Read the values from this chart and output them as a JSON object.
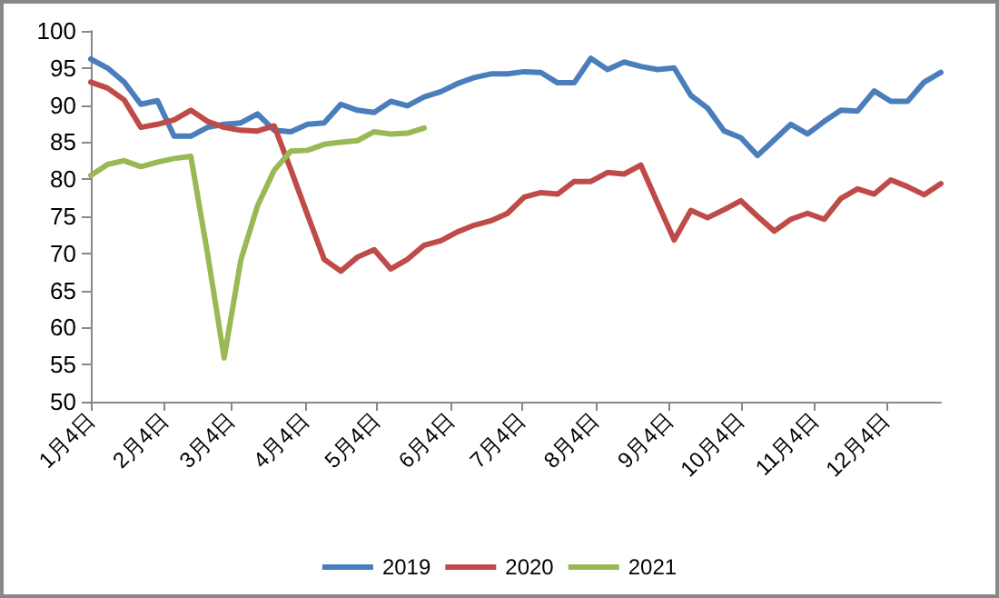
{
  "chart_data": {
    "type": "line",
    "x": [
      "--01-04",
      "--01-11",
      "--01-18",
      "--01-25",
      "--02-01",
      "--02-08",
      "--02-15",
      "--02-22",
      "--03-01",
      "--03-08",
      "--03-15",
      "--03-22",
      "--03-29",
      "--04-05",
      "--04-12",
      "--04-19",
      "--04-26",
      "--05-03",
      "--05-10",
      "--05-17",
      "--05-24",
      "--05-31",
      "--06-07",
      "--06-14",
      "--06-21",
      "--06-28",
      "--07-05",
      "--07-12",
      "--07-19",
      "--07-26",
      "--08-02",
      "--08-09",
      "--08-16",
      "--08-23",
      "--08-30",
      "--09-06",
      "--09-13",
      "--09-20",
      "--09-27",
      "--10-04",
      "--10-11",
      "--10-18",
      "--10-25",
      "--11-01",
      "--11-08",
      "--11-15",
      "--11-22",
      "--11-29",
      "--12-06",
      "--12-13",
      "--12-20",
      "--12-27"
    ],
    "series": [
      {
        "name": "2019",
        "color": "#4a7ebb",
        "values": [
          96.2,
          95.0,
          93.1,
          90.1,
          90.6,
          85.8,
          85.8,
          87.0,
          87.4,
          87.6,
          88.8,
          86.6,
          86.4,
          87.4,
          87.6,
          90.1,
          89.3,
          89.0,
          90.5,
          89.9,
          91.1,
          91.8,
          92.9,
          93.7,
          94.2,
          94.2,
          94.5,
          94.4,
          93.0,
          93.0,
          96.3,
          94.8,
          95.8,
          95.2,
          94.8,
          95.0,
          91.3,
          89.6,
          86.5,
          85.6,
          83.2,
          85.3,
          87.4,
          86.1,
          87.8,
          89.3,
          89.2,
          91.9,
          90.5,
          90.5,
          93.1,
          94.4
        ]
      },
      {
        "name": "2020",
        "color": "#be4b48",
        "values": [
          93.1,
          92.3,
          90.7,
          87.0,
          87.4,
          88.0,
          89.3,
          87.8,
          87.0,
          86.6,
          86.5,
          87.2,
          81.3,
          75.2,
          69.2,
          67.6,
          69.5,
          70.5,
          67.9,
          69.2,
          71.1,
          71.7,
          72.9,
          73.8,
          74.4,
          75.4,
          77.6,
          78.2,
          78.0,
          79.7,
          79.7,
          80.9,
          80.7,
          81.9,
          76.8,
          71.8,
          75.8,
          74.8,
          75.9,
          77.1,
          75.0,
          73.0,
          74.6,
          75.4,
          74.6,
          77.4,
          78.7,
          78.0,
          79.9,
          79.0,
          77.9,
          79.4
        ]
      },
      {
        "name": "2021",
        "color": "#98b954",
        "x": [
          "--01-04",
          "--01-11",
          "--01-18",
          "--01-25",
          "--02-01",
          "--02-08",
          "--02-15",
          "--02-22",
          "--03-01",
          "--03-08",
          "--03-15",
          "--03-22",
          "--03-29",
          "--04-05",
          "--04-12",
          "--04-19",
          "--04-26",
          "--05-03",
          "--05-10",
          "--05-17",
          "--05-24"
        ],
        "values": [
          80.5,
          82.0,
          82.5,
          81.7,
          82.3,
          82.8,
          83.1,
          70.0,
          55.9,
          69.1,
          76.4,
          81.2,
          83.8,
          83.9,
          84.7,
          85.0,
          85.2,
          86.4,
          86.1,
          86.2,
          86.9
        ]
      }
    ],
    "xlim": [
      "--01-04",
      "--12-27"
    ],
    "xticks": [
      {
        "value": "--01-04",
        "label": "1月4日"
      },
      {
        "value": "--02-04",
        "label": "2月4日"
      },
      {
        "value": "--03-04",
        "label": "3月4日"
      },
      {
        "value": "--04-04",
        "label": "4月4日"
      },
      {
        "value": "--05-04",
        "label": "5月4日"
      },
      {
        "value": "--06-04",
        "label": "6月4日"
      },
      {
        "value": "--07-04",
        "label": "7月4日"
      },
      {
        "value": "--08-04",
        "label": "8月4日"
      },
      {
        "value": "--09-04",
        "label": "9月4日"
      },
      {
        "value": "--10-04",
        "label": "10月4日"
      },
      {
        "value": "--11-04",
        "label": "11月4日"
      },
      {
        "value": "--12-04",
        "label": "12月4日"
      }
    ],
    "ylim": [
      50,
      100
    ],
    "yticks": [
      50,
      55,
      60,
      65,
      70,
      75,
      80,
      85,
      90,
      95,
      100
    ],
    "grid": false,
    "legend": "bottom",
    "marker": "none",
    "line_style": "solid"
  }
}
